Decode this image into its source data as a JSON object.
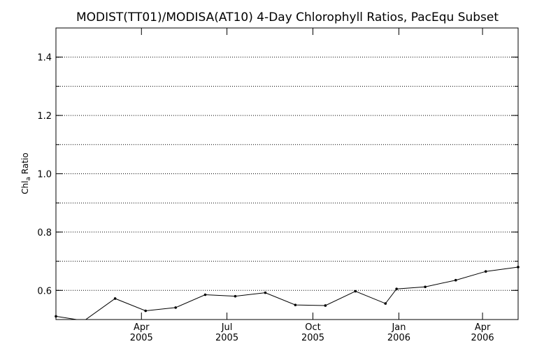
{
  "chart_data": {
    "type": "line",
    "title": "MODIST(TT01)/MODISA(AT10) 4-Day Chlorophyll Ratios, PacEqu Subset",
    "ylabel_main": "Chl",
    "ylabel_sub": "a",
    "ylabel_rest": " Ratio",
    "xlabel": "",
    "ylim": [
      0.5,
      1.5
    ],
    "grid": true,
    "y_ticks": [
      {
        "value": 0.6,
        "label": "0.6"
      },
      {
        "value": 0.8,
        "label": "0.8"
      },
      {
        "value": 1.0,
        "label": "1.0"
      },
      {
        "value": 1.2,
        "label": "1.2"
      },
      {
        "value": 1.4,
        "label": "1.4"
      }
    ],
    "x_ticks": [
      {
        "pos": 0.185,
        "month": "Apr",
        "year": "2005"
      },
      {
        "pos": 0.37,
        "month": "Jul",
        "year": "2005"
      },
      {
        "pos": 0.556,
        "month": "Oct",
        "year": "2005"
      },
      {
        "pos": 0.742,
        "month": "Jan",
        "year": "2006"
      },
      {
        "pos": 0.923,
        "month": "Apr",
        "year": "2006"
      }
    ],
    "series": [
      {
        "x": [
          0.0,
          0.061,
          0.128,
          0.194,
          0.259,
          0.323,
          0.388,
          0.453,
          0.518,
          0.583,
          0.648,
          0.713,
          0.737,
          0.799,
          0.865,
          0.93,
          1.0
        ],
        "values": [
          0.511,
          0.496,
          0.572,
          0.53,
          0.541,
          0.585,
          0.58,
          0.592,
          0.55,
          0.548,
          0.597,
          0.555,
          0.605,
          0.612,
          0.635,
          0.665,
          0.68
        ]
      }
    ]
  }
}
